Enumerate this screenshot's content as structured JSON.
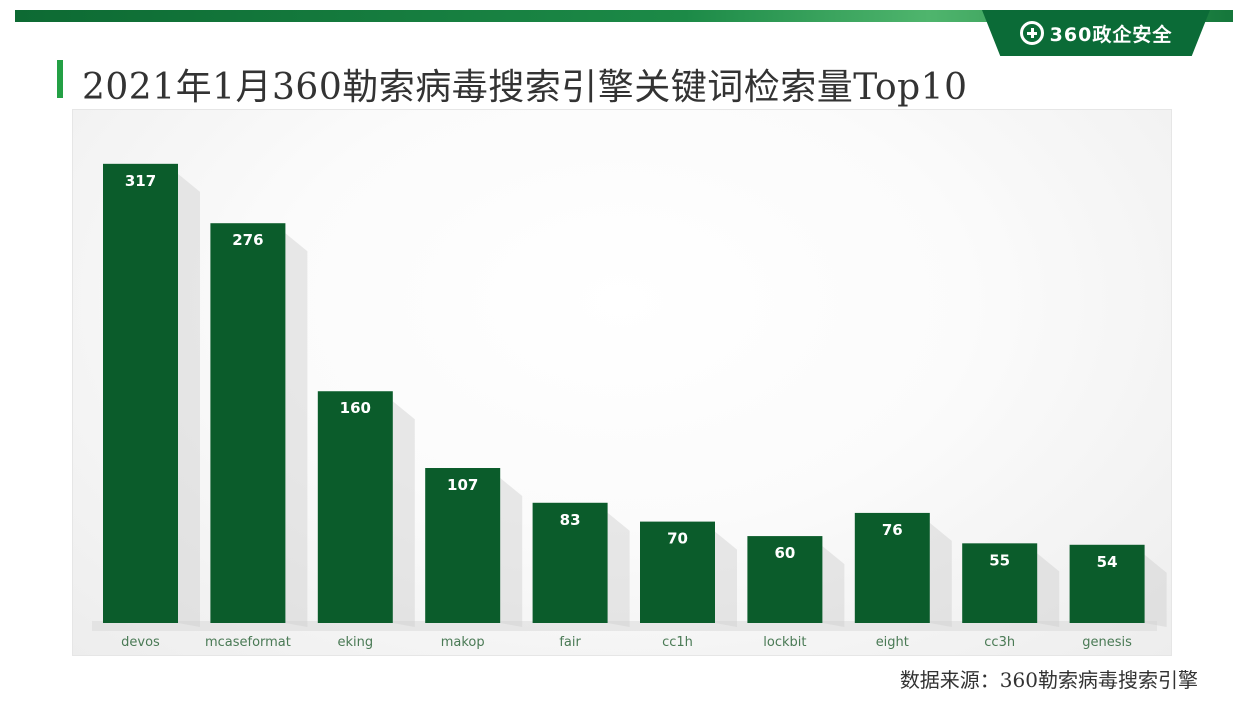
{
  "brand": {
    "label": "360政企安全",
    "icon": "plus-circle-icon"
  },
  "colors": {
    "bar": "#0b5c2b",
    "accent": "#23a045",
    "band": "#0d6a33"
  },
  "chart_data": {
    "type": "bar",
    "title": "2021年1月360勒索病毒搜索引擎关键词检索量Top10",
    "categories": [
      "devos",
      "mcaseformat",
      "eking",
      "makop",
      "fair",
      "cc1h",
      "lockbit",
      "eight",
      "cc3h",
      "genesis"
    ],
    "values": [
      317,
      276,
      160,
      107,
      83,
      70,
      60,
      76,
      55,
      54
    ],
    "xlabel": "",
    "ylabel": "",
    "ylim": [
      0,
      350
    ],
    "grid": false,
    "legend": "none",
    "data_labels": true
  },
  "source": "数据来源：360勒索病毒搜索引擎"
}
